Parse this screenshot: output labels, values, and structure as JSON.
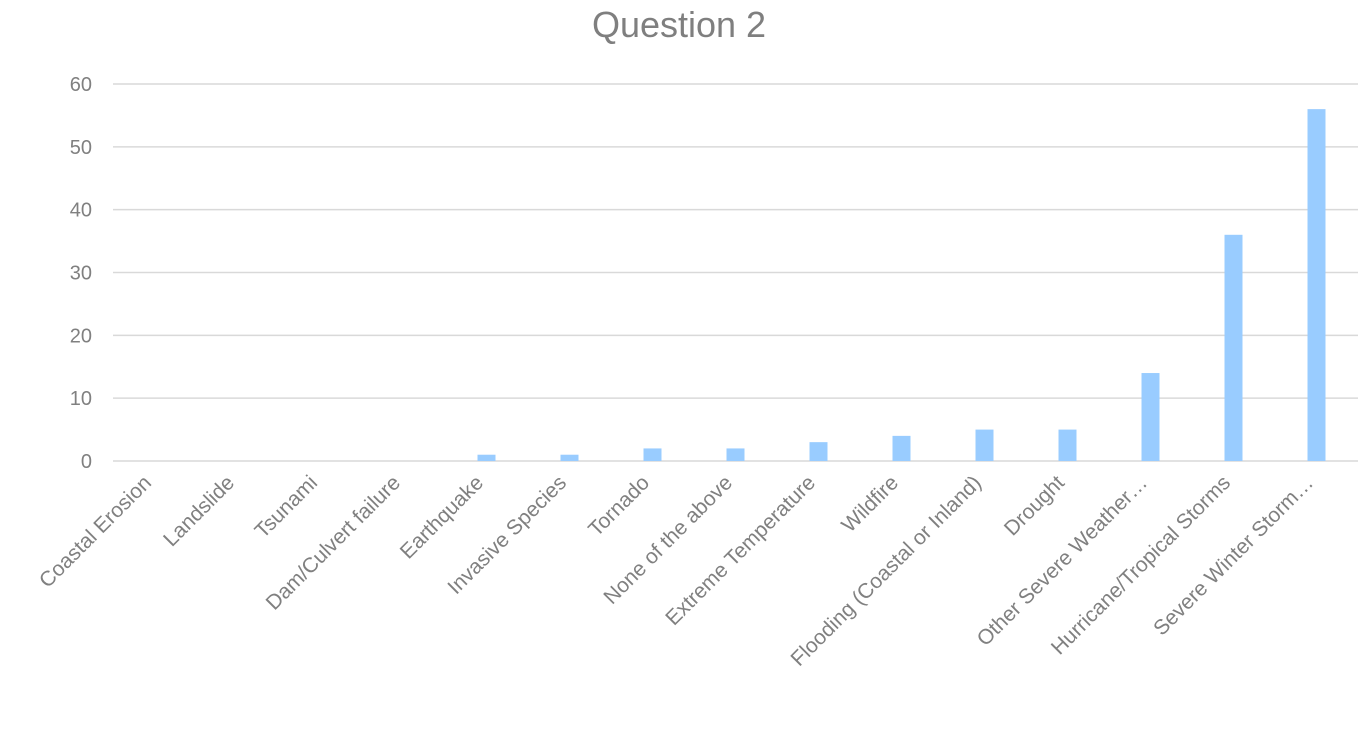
{
  "chart_data": {
    "type": "bar",
    "title": "Question 2",
    "categories": [
      "Coastal Erosion",
      "Landslide",
      "Tsunami",
      "Dam/Culvert failure",
      "Earthquake",
      "Invasive Species",
      "Tornado",
      "None of the above",
      "Extreme Temperature",
      "Wildfire",
      "Flooding (Coastal or Inland)",
      "Drought",
      "Other Severe Weather…",
      "Hurricane/Tropical Storms",
      "Severe Winter Storm…"
    ],
    "values": [
      0,
      0,
      0,
      0,
      1,
      1,
      2,
      2,
      3,
      4,
      5,
      5,
      14,
      36,
      56
    ],
    "xlabel": "",
    "ylabel": "",
    "ylim": [
      0,
      60
    ],
    "yticks": [
      0,
      10,
      20,
      30,
      40,
      50,
      60
    ],
    "grid": true,
    "legend": "none",
    "bar_color": "#99ccff"
  }
}
